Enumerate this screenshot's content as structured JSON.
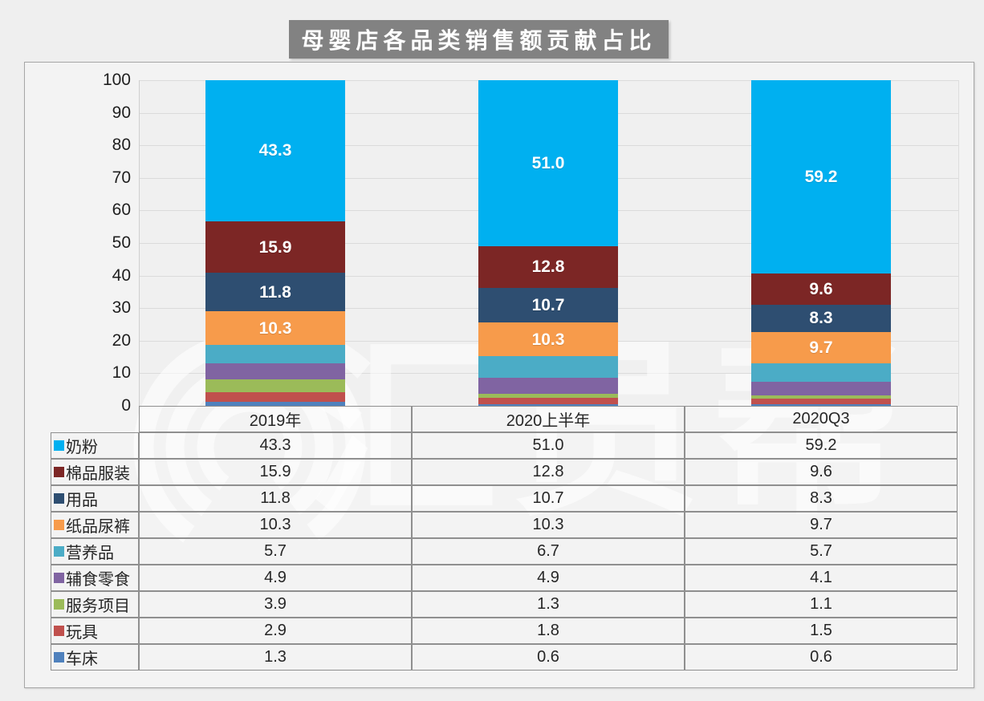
{
  "title": "母婴店各品类销售额贡献占比",
  "watermark": {
    "text": "汇员帮"
  },
  "chart_data": {
    "type": "bar",
    "stacked": true,
    "title": "母婴店各品类销售额贡献占比",
    "categories": [
      "2019年",
      "2020上半年",
      "2020Q3"
    ],
    "series": [
      {
        "name": "奶粉",
        "color": "#00B0F0",
        "values": [
          43.3,
          51.0,
          59.2
        ]
      },
      {
        "name": "棉品服装",
        "color": "#7C2625",
        "values": [
          15.9,
          12.8,
          9.6
        ]
      },
      {
        "name": "用品",
        "color": "#2E4E71",
        "values": [
          11.8,
          10.7,
          8.3
        ]
      },
      {
        "name": "纸品尿裤",
        "color": "#F79B4B",
        "values": [
          10.3,
          10.3,
          9.7
        ]
      },
      {
        "name": "营养品",
        "color": "#4BACC6",
        "values": [
          5.7,
          6.7,
          5.7
        ]
      },
      {
        "name": "辅食零食",
        "color": "#8064A2",
        "values": [
          4.9,
          4.9,
          4.1
        ]
      },
      {
        "name": "服务项目",
        "color": "#9BBB59",
        "values": [
          3.9,
          1.3,
          1.1
        ]
      },
      {
        "name": "玩具",
        "color": "#C0504D",
        "values": [
          2.9,
          1.8,
          1.5
        ]
      },
      {
        "name": "车床",
        "color": "#4F81BD",
        "values": [
          1.3,
          0.6,
          0.6
        ]
      }
    ],
    "ylim": [
      0,
      100
    ],
    "y_ticks": [
      0,
      10,
      20,
      30,
      40,
      50,
      60,
      70,
      80,
      90,
      100
    ],
    "grid": true,
    "value_label_threshold": 8,
    "value_decimals": 1,
    "legend_position": "table-left"
  }
}
